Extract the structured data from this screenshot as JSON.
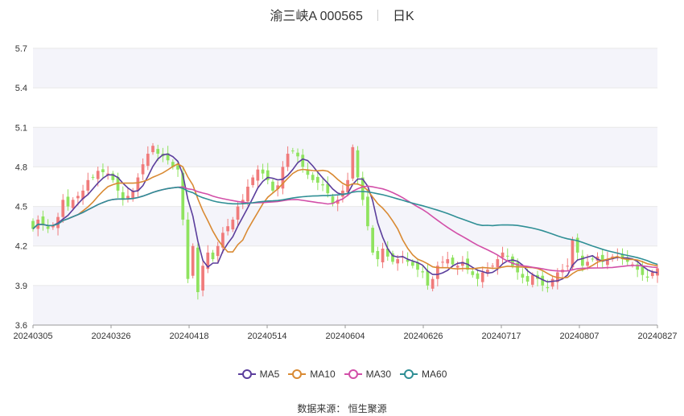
{
  "title": {
    "name": "渝三峡A 000565",
    "period": "日K"
  },
  "source": "数据来源： 恒生聚源",
  "legend": [
    {
      "name": "MA5",
      "color": "#5b3e9c"
    },
    {
      "name": "MA10",
      "color": "#d98a33"
    },
    {
      "name": "MA30",
      "color": "#d24fa8"
    },
    {
      "name": "MA60",
      "color": "#2f8f95"
    }
  ],
  "colors": {
    "up": "#f07b7b",
    "down": "#8fe35f",
    "grid": "#e8e8e8",
    "band": "#f4f4fa",
    "axis": "#333333"
  },
  "chart_data": {
    "type": "candlestick",
    "ylim": [
      3.6,
      5.7
    ],
    "yticks": [
      "3.6",
      "3.9",
      "4.2",
      "4.5",
      "4.8",
      "5.1",
      "5.4",
      "5.7"
    ],
    "xticks": [
      "20240305",
      "20240326",
      "20240418",
      "20240514",
      "20240604",
      "20240626",
      "20240717",
      "20240807",
      "20240827"
    ],
    "grid": true,
    "legend_position": "bottom",
    "close": [
      4.33,
      4.4,
      4.36,
      4.33,
      4.36,
      4.42,
      4.55,
      4.5,
      4.55,
      4.58,
      4.62,
      4.7,
      4.72,
      4.77,
      4.76,
      4.75,
      4.7,
      4.62,
      4.55,
      4.58,
      4.62,
      4.72,
      4.82,
      4.9,
      4.96,
      4.9,
      4.88,
      4.85,
      4.8,
      4.78,
      4.4,
      3.95,
      4.2,
      3.85,
      4.05,
      4.15,
      4.1,
      4.2,
      4.3,
      4.35,
      4.4,
      4.5,
      4.55,
      4.65,
      4.72,
      4.78,
      4.75,
      4.7,
      4.62,
      4.66,
      4.8,
      4.9,
      4.92,
      4.88,
      4.8,
      4.74,
      4.7,
      4.68,
      4.66,
      4.6,
      4.52,
      4.55,
      4.62,
      4.7,
      4.95,
      4.72,
      4.55,
      4.35,
      4.15,
      4.1,
      4.18,
      4.12,
      4.08,
      4.1,
      4.12,
      4.08,
      4.05,
      4.02,
      4.0,
      3.9,
      3.95,
      4.05,
      4.08,
      4.1,
      4.06,
      4.05,
      4.08,
      4.02,
      3.98,
      3.95,
      4.0,
      4.02,
      4.05,
      4.1,
      4.15,
      4.12,
      4.05,
      4.0,
      3.96,
      3.93,
      3.98,
      3.95,
      3.9,
      3.88,
      3.95,
      4.0,
      4.02,
      4.05,
      4.25,
      4.15,
      4.05,
      4.08,
      4.1,
      4.12,
      4.08,
      4.1,
      4.12,
      4.15,
      4.1,
      4.08,
      4.06,
      4.02,
      3.98,
      3.96,
      4.0,
      4.03
    ]
  }
}
